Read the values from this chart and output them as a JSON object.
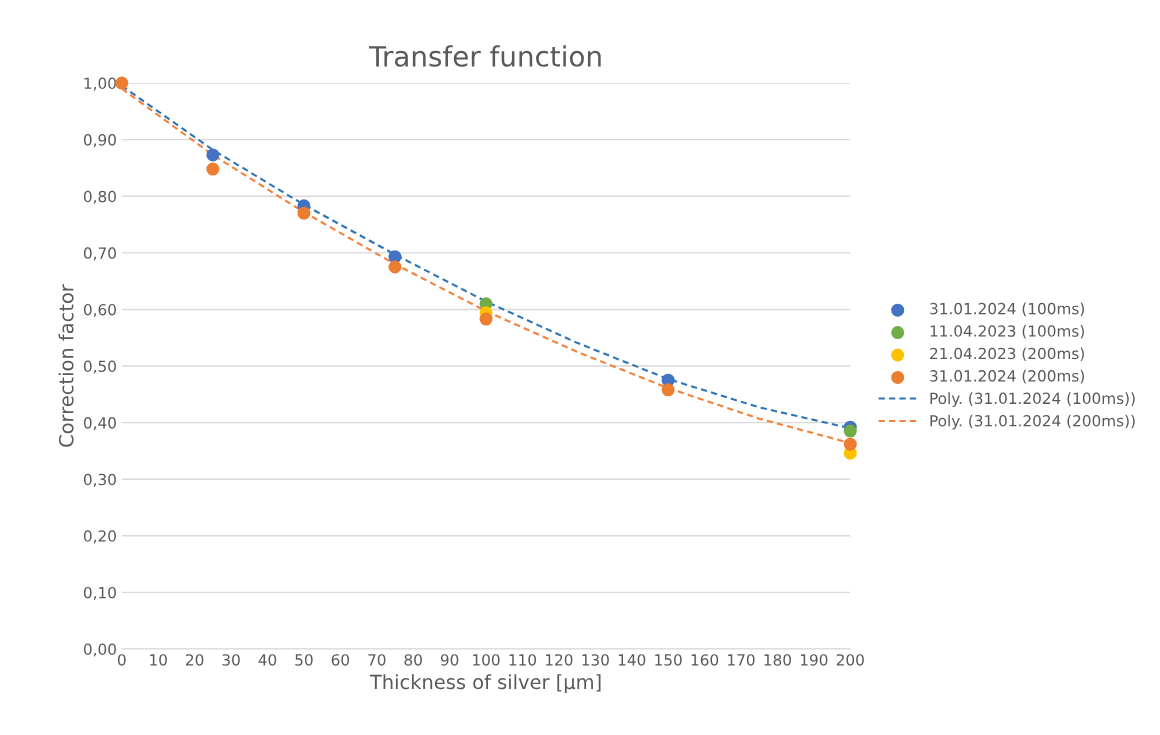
{
  "chart_data": {
    "type": "scatter",
    "title": "Transfer function",
    "xlabel": "Thickness of silver [µm]",
    "ylabel": "Correction factor",
    "xlim": [
      0,
      200
    ],
    "xticks": [
      0,
      10,
      20,
      30,
      40,
      50,
      60,
      70,
      80,
      90,
      100,
      110,
      120,
      130,
      140,
      150,
      160,
      170,
      180,
      190,
      200
    ],
    "ylim": [
      0,
      1.0
    ],
    "yticks": [
      {
        "value": 0,
        "label": "0,00"
      },
      {
        "value": 0.1,
        "label": "0,10"
      },
      {
        "value": 0.2,
        "label": "0,20"
      },
      {
        "value": 0.3,
        "label": "0,30"
      },
      {
        "value": 0.4,
        "label": "0,40"
      },
      {
        "value": 0.5,
        "label": "0,50"
      },
      {
        "value": 0.6,
        "label": "0,60"
      },
      {
        "value": 0.7,
        "label": "0,70"
      },
      {
        "value": 0.8,
        "label": "0,80"
      },
      {
        "value": 0.9,
        "label": "0,90"
      },
      {
        "value": 1.0,
        "label": "1,00"
      }
    ],
    "grid": "y",
    "legend": "right",
    "series": [
      {
        "name": "31.01.2024 (100ms)",
        "color": "#4472c4",
        "marker": "circle",
        "x": [
          25,
          50,
          75,
          150,
          200
        ],
        "values": [
          0.873,
          0.783,
          0.693,
          0.475,
          0.392
        ]
      },
      {
        "name": "11.04.2023 (100ms)",
        "color": "#70ad47",
        "marker": "circle",
        "x": [
          100,
          200
        ],
        "values": [
          0.61,
          0.385
        ]
      },
      {
        "name": "21.04.2023 (200ms)",
        "color": "#ffc000",
        "marker": "circle",
        "x": [
          100,
          200
        ],
        "values": [
          0.594,
          0.346
        ]
      },
      {
        "name": "31.01.2024 (200ms)",
        "color": "#ed7d31",
        "marker": "circle",
        "x": [
          0,
          25,
          50,
          75,
          100,
          150,
          200
        ],
        "values": [
          1.0,
          0.848,
          0.77,
          0.675,
          0.583,
          0.458,
          0.362
        ]
      },
      {
        "name": "Poly. (31.01.2024 (100ms))",
        "type": "line",
        "line_style": "dashed",
        "marker": "none",
        "color": "#2e75b6",
        "x": [
          0,
          25,
          50,
          75,
          100,
          125,
          150,
          175,
          200
        ],
        "values": [
          0.995,
          0.882,
          0.785,
          0.697,
          0.614,
          0.541,
          0.477,
          0.427,
          0.39
        ]
      },
      {
        "name": "Poly. (31.01.2024 (200ms))",
        "type": "line",
        "line_style": "dashed",
        "marker": "none",
        "color": "#f4813a",
        "x": [
          0,
          25,
          50,
          75,
          100,
          125,
          150,
          175,
          200
        ],
        "values": [
          0.99,
          0.873,
          0.772,
          0.68,
          0.597,
          0.525,
          0.461,
          0.407,
          0.364
        ]
      }
    ]
  }
}
